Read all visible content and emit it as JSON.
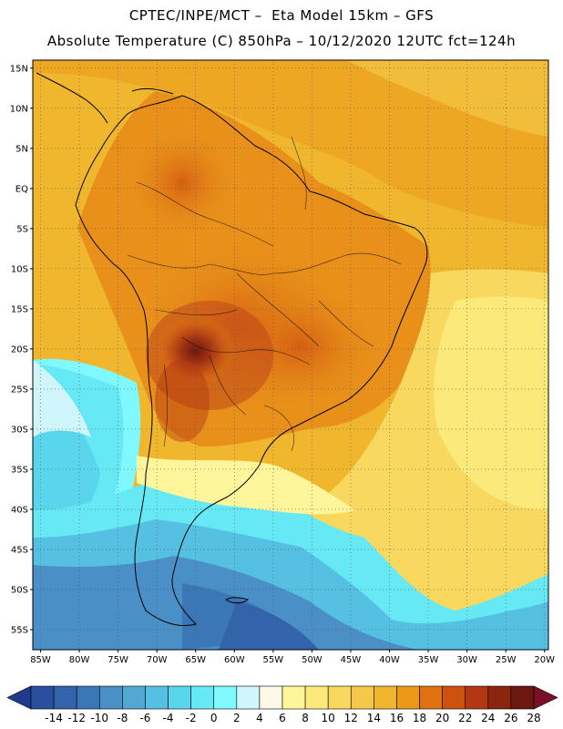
{
  "header": {
    "line1": "CPTEC/INPE/MCT –  Eta Model 15km – GFS",
    "line2": "Absolute Temperature (C) 850hPa – 10/12/2020 12UTC fct=124h"
  },
  "map": {
    "lat_labels": [
      "15N",
      "10N",
      "5N",
      "EQ",
      "5S",
      "10S",
      "15S",
      "20S",
      "25S",
      "30S",
      "35S",
      "40S",
      "45S",
      "50S",
      "55S"
    ],
    "lon_labels": [
      "85W",
      "80W",
      "75W",
      "70W",
      "65W",
      "60W",
      "55W",
      "50W",
      "45W",
      "40W",
      "35W",
      "30W",
      "25W",
      "20W"
    ],
    "lat_values": [
      15,
      10,
      5,
      0,
      -5,
      -10,
      -15,
      -20,
      -25,
      -30,
      -35,
      -40,
      -45,
      -50,
      -55
    ],
    "lon_values": [
      -85,
      -80,
      -75,
      -70,
      -65,
      -60,
      -55,
      -50,
      -45,
      -40,
      -35,
      -30,
      -25,
      -20
    ],
    "lon_range": [
      -86,
      -19.5
    ],
    "lat_range": [
      16,
      -57.5
    ],
    "grid": "dotted"
  },
  "colorbar": {
    "labels": [
      "-14",
      "-12",
      "-10",
      "-8",
      "-6",
      "-4",
      "-2",
      "0",
      "2",
      "4",
      "6",
      "8",
      "10",
      "12",
      "14",
      "16",
      "18",
      "20",
      "22",
      "24",
      "26",
      "28"
    ],
    "colors": [
      "#1f3c8c",
      "#2a4f9d",
      "#3363aa",
      "#3b76b6",
      "#4a8fc6",
      "#53a7d3",
      "#55c0e2",
      "#5ad6ec",
      "#66e8f5",
      "#7ff8ff",
      "#cff6fb",
      "#fff8e6",
      "#fff59a",
      "#fbe97a",
      "#f8d85e",
      "#f4c84a",
      "#f0b62d",
      "#eb9a18",
      "#e07210",
      "#cc5210",
      "#b33712",
      "#8c2510",
      "#6c1810",
      "#7a0f28"
    ]
  }
}
